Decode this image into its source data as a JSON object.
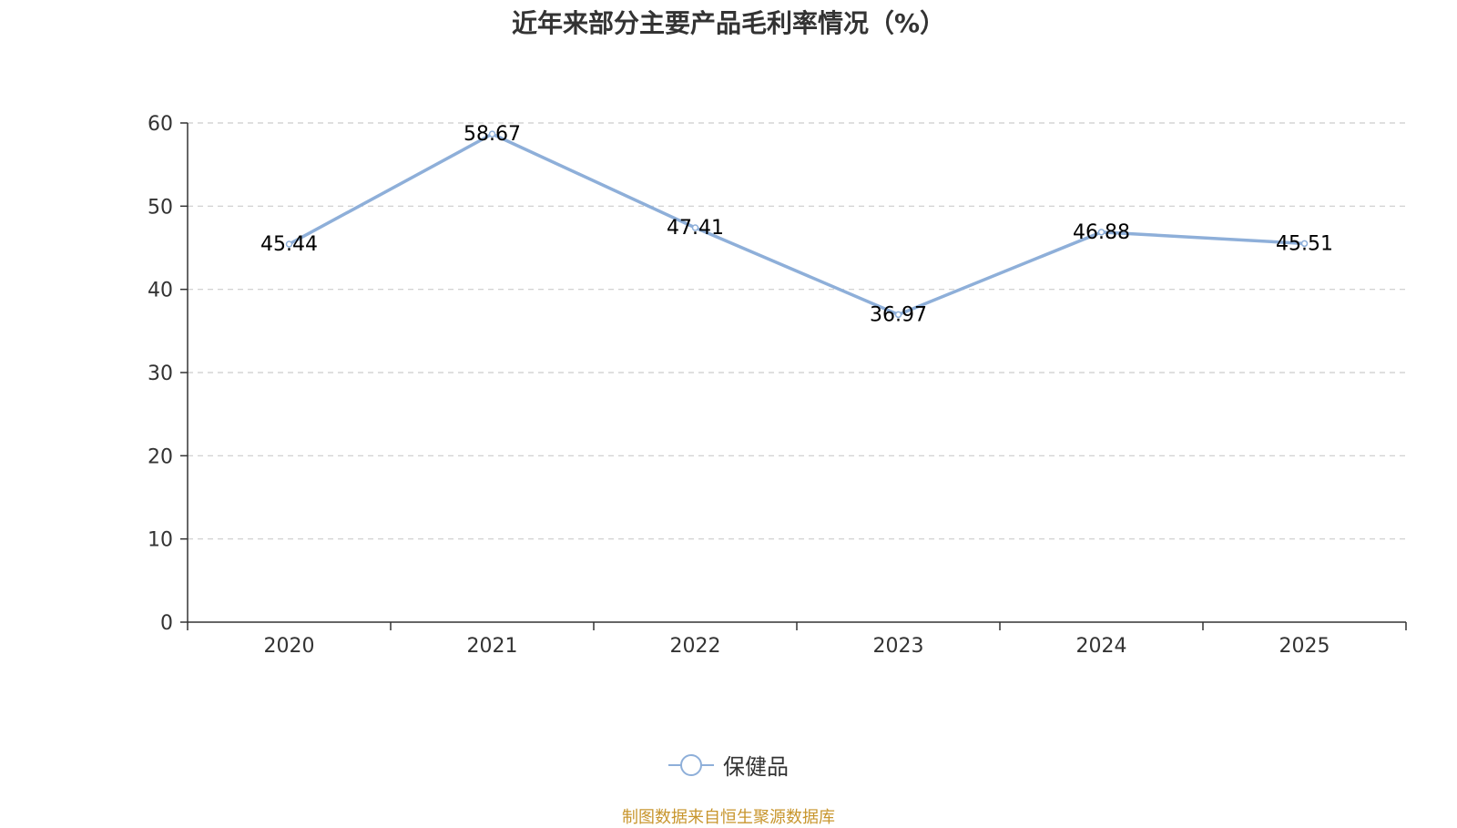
{
  "chart_data": {
    "type": "line",
    "title": "近年来部分主要产品毛利率情况（%）",
    "categories": [
      "2020",
      "2021",
      "2022",
      "2023",
      "2024",
      "2025"
    ],
    "series": [
      {
        "name": "保健品",
        "values": [
          45.44,
          58.67,
          47.41,
          36.97,
          46.88,
          45.51
        ],
        "color": "#8eafd9"
      }
    ],
    "data_labels": [
      "45.44",
      "58.67",
      "47.41",
      "36.97",
      "46.88",
      "45.51"
    ],
    "y_ticks": [
      0,
      10,
      20,
      30,
      40,
      50,
      60
    ],
    "ylim": [
      0,
      60
    ],
    "xlabel": "",
    "ylabel": "",
    "grid": true,
    "legend_position": "bottom-center"
  },
  "source_note": "制图数据来自恒生聚源数据库"
}
